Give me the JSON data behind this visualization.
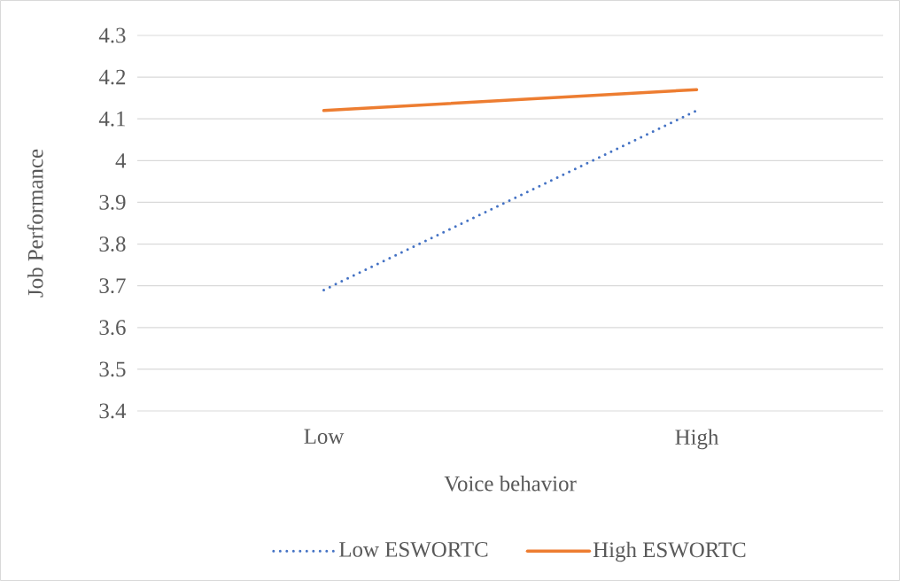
{
  "chart_data": {
    "type": "line",
    "xlabel": "Voice behavior",
    "ylabel": "Job Performance",
    "categories": [
      "Low",
      "High"
    ],
    "series": [
      {
        "name": "Low ESWORTC",
        "color": "#4472c4",
        "values": [
          3.69,
          4.12
        ],
        "line_style": "dotted"
      },
      {
        "name": "High ESWORTC",
        "color": "#ed7d31",
        "values": [
          4.12,
          4.17
        ],
        "line_style": "solid"
      }
    ],
    "ylim": [
      3.4,
      4.3
    ],
    "yticks": [
      3.4,
      3.5,
      3.6,
      3.7,
      3.8,
      3.9,
      4,
      4.1,
      4.2,
      4.3
    ],
    "grid": "y",
    "legend": "bottom"
  }
}
